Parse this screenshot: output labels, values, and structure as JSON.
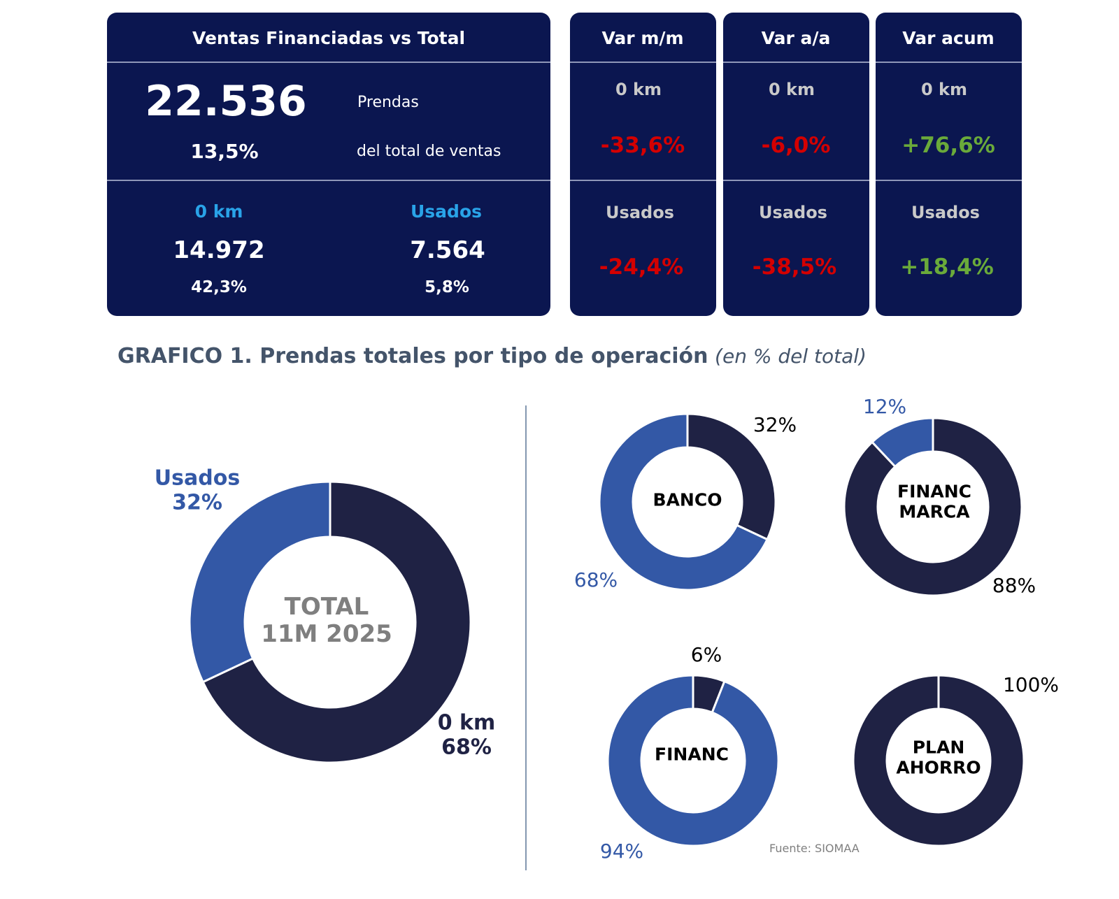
{
  "summary": {
    "title": "Ventas Financiadas vs Total",
    "total_value": "22.536",
    "total_unit": "Prendas",
    "total_pct": "13,5%",
    "total_pct_label": "del total de ventas",
    "new": {
      "label": "0 km",
      "value": "14.972",
      "pct": "42,3%"
    },
    "used": {
      "label": "Usados",
      "value": "7.564",
      "pct": "5,8%"
    }
  },
  "variations": [
    {
      "title": "Var m/m",
      "new_label": "0 km",
      "new_value": "-33,6%",
      "used_label": "Usados",
      "used_value": "-24,4%"
    },
    {
      "title": "Var a/a",
      "new_label": "0 km",
      "new_value": "-6,0%",
      "used_label": "Usados",
      "used_value": "-38,5%"
    },
    {
      "title": "Var acum",
      "new_label": "0 km",
      "new_value": "+76,6%",
      "used_label": "Usados",
      "used_value": "+18,4%"
    }
  ],
  "colors": {
    "card": "#0b1650",
    "negative": "#d40000",
    "positive": "#6aaa3a",
    "accent": "#29a3e8",
    "dark": "#1f2244",
    "blue": "#3358a6"
  },
  "chart_title": {
    "bold": "GRAFICO 1. Prendas totales por tipo de operación",
    "italic": "(en % del total)"
  },
  "source": "Fuente: SIOMAA",
  "chart_data": [
    {
      "type": "pie",
      "variant": "donut",
      "center_label": [
        "TOTAL",
        "11M 2025"
      ],
      "categories": [
        "0 km",
        "Usados"
      ],
      "values": [
        68,
        32
      ],
      "labels": [
        "0 km\n68%",
        "Usados\n32%"
      ]
    },
    {
      "type": "pie",
      "variant": "donut",
      "center_label": [
        "BANCO"
      ],
      "categories": [
        "0 km",
        "Usados"
      ],
      "values": [
        32,
        68
      ],
      "labels": [
        "32%",
        "68%"
      ]
    },
    {
      "type": "pie",
      "variant": "donut",
      "center_label": [
        "FINANC",
        "MARCA"
      ],
      "categories": [
        "0 km",
        "Usados"
      ],
      "values": [
        88,
        12
      ],
      "labels": [
        "88%",
        "12%"
      ]
    },
    {
      "type": "pie",
      "variant": "donut",
      "center_label": [
        "FINANC"
      ],
      "categories": [
        "0 km",
        "Usados"
      ],
      "values": [
        6,
        94
      ],
      "labels": [
        "6%",
        "94%"
      ]
    },
    {
      "type": "pie",
      "variant": "donut",
      "center_label": [
        "PLAN",
        "AHORRO"
      ],
      "categories": [
        "0 km",
        "Usados"
      ],
      "values": [
        100,
        0
      ],
      "labels": [
        "100%"
      ]
    }
  ]
}
